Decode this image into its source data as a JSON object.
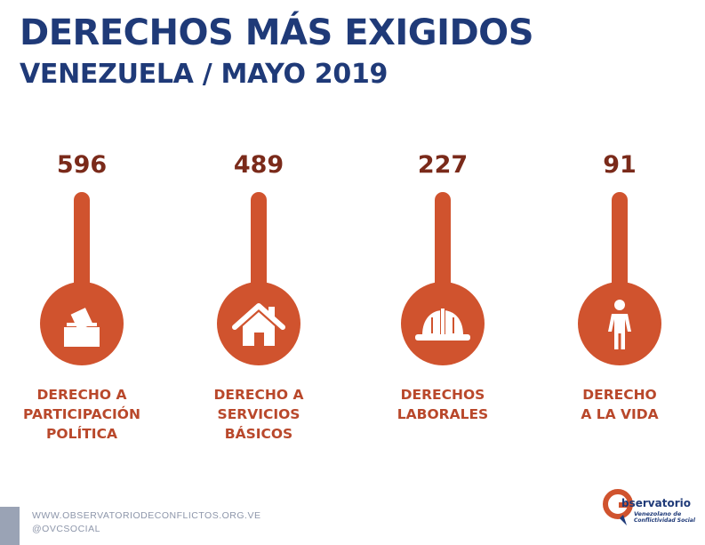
{
  "header": {
    "title": "DERECHOS MÁS EXIGIDOS",
    "subtitle": "VENEZUELA / MAYO 2019"
  },
  "items": [
    {
      "value": "596",
      "label_lines": [
        "DERECHO A",
        "PARTICIPACIÓN",
        "POLÍTICA"
      ],
      "icon": "ballot-box-icon"
    },
    {
      "value": "489",
      "label_lines": [
        "DERECHO A",
        "SERVICIOS",
        "BÁSICOS"
      ],
      "icon": "house-icon"
    },
    {
      "value": "227",
      "label_lines": [
        "DERECHOS",
        "LABORALES"
      ],
      "icon": "hard-hat-icon"
    },
    {
      "value": "91",
      "label_lines": [
        "DERECHO",
        "A LA VIDA"
      ],
      "icon": "person-icon"
    }
  ],
  "colors": {
    "title": "#1f3a78",
    "value": "#7a2a1a",
    "accent": "#d0532e",
    "label": "#b9482b",
    "footer_text": "#8d96aa"
  },
  "footer": {
    "url": "WWW.OBSERVATORIODECONFLICTOS.ORG.VE",
    "handle": "@OVCSOCIAL"
  },
  "logo": {
    "line1": "bservatorio",
    "line2": "Venezolano de",
    "line3": "Conflictividad Social"
  }
}
